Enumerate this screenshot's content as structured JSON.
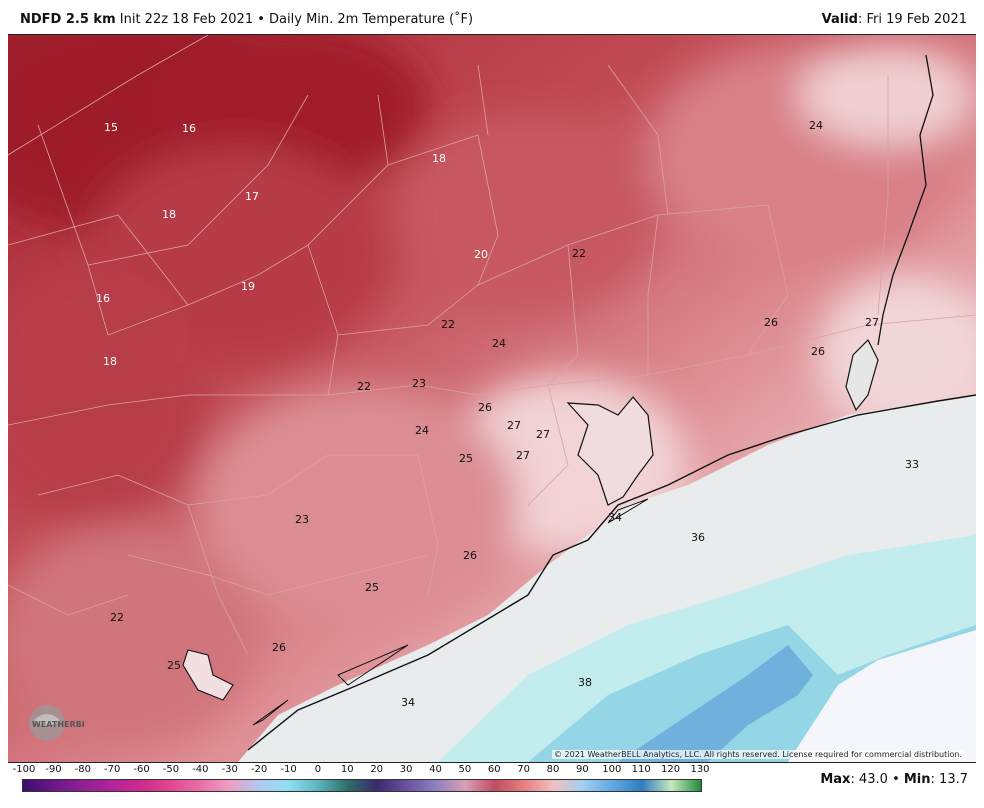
{
  "header": {
    "model": "NDFD 2.5 km",
    "init": "Init 22z 18 Feb 2021",
    "sep": "•",
    "field": "Daily Min. 2m Temperature (˚F)",
    "valid_label": "Valid",
    "valid_date": ": Fri 19 Feb 2021"
  },
  "map": {
    "copyright": "© 2021 WeatherBELL Analytics, LLC. All rights reserved. License required for commercial distribution.",
    "logo_text": "WEATHERBELL",
    "temperature_labels": [
      {
        "value": "15",
        "color": "#ffffff"
      },
      {
        "value": "16",
        "color": "#ffffff"
      },
      {
        "value": "18",
        "color": "#ffffff"
      },
      {
        "value": "17",
        "color": "#ffffff"
      },
      {
        "value": "18",
        "color": "#ffffff"
      },
      {
        "value": "20",
        "color": "#ffffff"
      },
      {
        "value": "22",
        "color": "#111111"
      },
      {
        "value": "24",
        "color": "#111111"
      },
      {
        "value": "16",
        "color": "#ffffff"
      },
      {
        "value": "19",
        "color": "#ffffff"
      },
      {
        "value": "18",
        "color": "#ffffff"
      },
      {
        "value": "22",
        "color": "#111111"
      },
      {
        "value": "24",
        "color": "#111111"
      },
      {
        "value": "26",
        "color": "#111111"
      },
      {
        "value": "27",
        "color": "#111111"
      },
      {
        "value": "26",
        "color": "#111111"
      },
      {
        "value": "22",
        "color": "#111111"
      },
      {
        "value": "23",
        "color": "#111111"
      },
      {
        "value": "26",
        "color": "#111111"
      },
      {
        "value": "27",
        "color": "#111111"
      },
      {
        "value": "27",
        "color": "#111111"
      },
      {
        "value": "24",
        "color": "#111111"
      },
      {
        "value": "25",
        "color": "#111111"
      },
      {
        "value": "27",
        "color": "#111111"
      },
      {
        "value": "33",
        "color": "#111111"
      },
      {
        "value": "34",
        "color": "#111111"
      },
      {
        "value": "23",
        "color": "#111111"
      },
      {
        "value": "36",
        "color": "#111111"
      },
      {
        "value": "26",
        "color": "#111111"
      },
      {
        "value": "25",
        "color": "#111111"
      },
      {
        "value": "22",
        "color": "#111111"
      },
      {
        "value": "26",
        "color": "#111111"
      },
      {
        "value": "25",
        "color": "#111111"
      },
      {
        "value": "38",
        "color": "#111111"
      },
      {
        "value": "34",
        "color": "#111111"
      }
    ]
  },
  "colorbar": {
    "ticks": [
      "-100",
      "-90",
      "-80",
      "-70",
      "-60",
      "-50",
      "-40",
      "-30",
      "-20",
      "-10",
      "0",
      "10",
      "20",
      "30",
      "40",
      "50",
      "60",
      "70",
      "80",
      "90",
      "100",
      "110",
      "120",
      "130"
    ],
    "colors": [
      "#3d0f6e",
      "#6a1687",
      "#8e1f94",
      "#b0239b",
      "#cf2a8e",
      "#e0478f",
      "#e86fa6",
      "#ef9cc2",
      "#b0c8ee",
      "#8ee0f0",
      "#5db5c0",
      "#2e6f6a",
      "#3a2a6a",
      "#6a4fa0",
      "#8e7fc0",
      "#d8a0b8",
      "#c04c60",
      "#e58080",
      "#f1c0c0",
      "#a0d0f0",
      "#60a8e0",
      "#2f7fc0",
      "#c7e8c0",
      "#1f8a3a"
    ]
  },
  "stats": {
    "max_label": "Max",
    "max_value": ": 43.0",
    "sep": "•",
    "min_label": "Min",
    "min_value": ": 13.7"
  }
}
